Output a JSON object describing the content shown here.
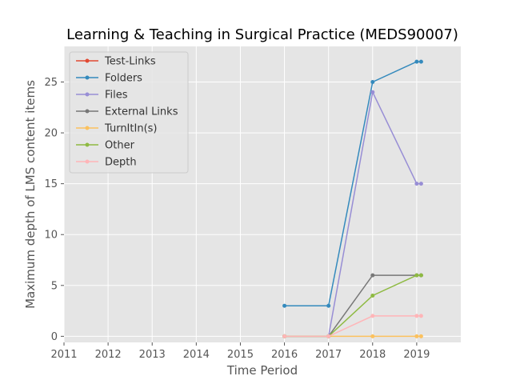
{
  "chart_data": {
    "type": "line",
    "title": "Learning & Teaching in Surgical Practice (MEDS90007)",
    "xlabel": "Time Period",
    "ylabel": "Maximum depth of LMS content items",
    "xlim": [
      2011,
      2020
    ],
    "ylim": [
      -0.6,
      28.5
    ],
    "xticks": [
      2011,
      2012,
      2013,
      2014,
      2015,
      2016,
      2017,
      2018,
      2019
    ],
    "yticks": [
      0,
      5,
      10,
      15,
      20,
      25
    ],
    "grid": true,
    "legend_position": "upper-left",
    "x": [
      2016.0,
      2017.0,
      2018.0,
      2019.0,
      2019.1
    ],
    "series": [
      {
        "name": "Test-Links",
        "color": "#e24a33",
        "values": [
          null,
          null,
          null,
          null,
          null
        ]
      },
      {
        "name": "Folders",
        "color": "#348abd",
        "values": [
          3,
          3,
          25,
          27,
          27
        ]
      },
      {
        "name": "Files",
        "color": "#988ed5",
        "values": [
          0,
          0,
          24,
          15,
          15
        ]
      },
      {
        "name": "External Links",
        "color": "#777777",
        "values": [
          0,
          0,
          6,
          6,
          6
        ]
      },
      {
        "name": "TurnItIn(s)",
        "color": "#fbc15e",
        "values": [
          0,
          0,
          0,
          0,
          0
        ]
      },
      {
        "name": "Other",
        "color": "#8eba42",
        "values": [
          0,
          0,
          4,
          6,
          6
        ]
      },
      {
        "name": "Depth",
        "color": "#ffb5b8",
        "values": [
          0,
          0,
          2,
          2,
          2
        ]
      }
    ]
  }
}
